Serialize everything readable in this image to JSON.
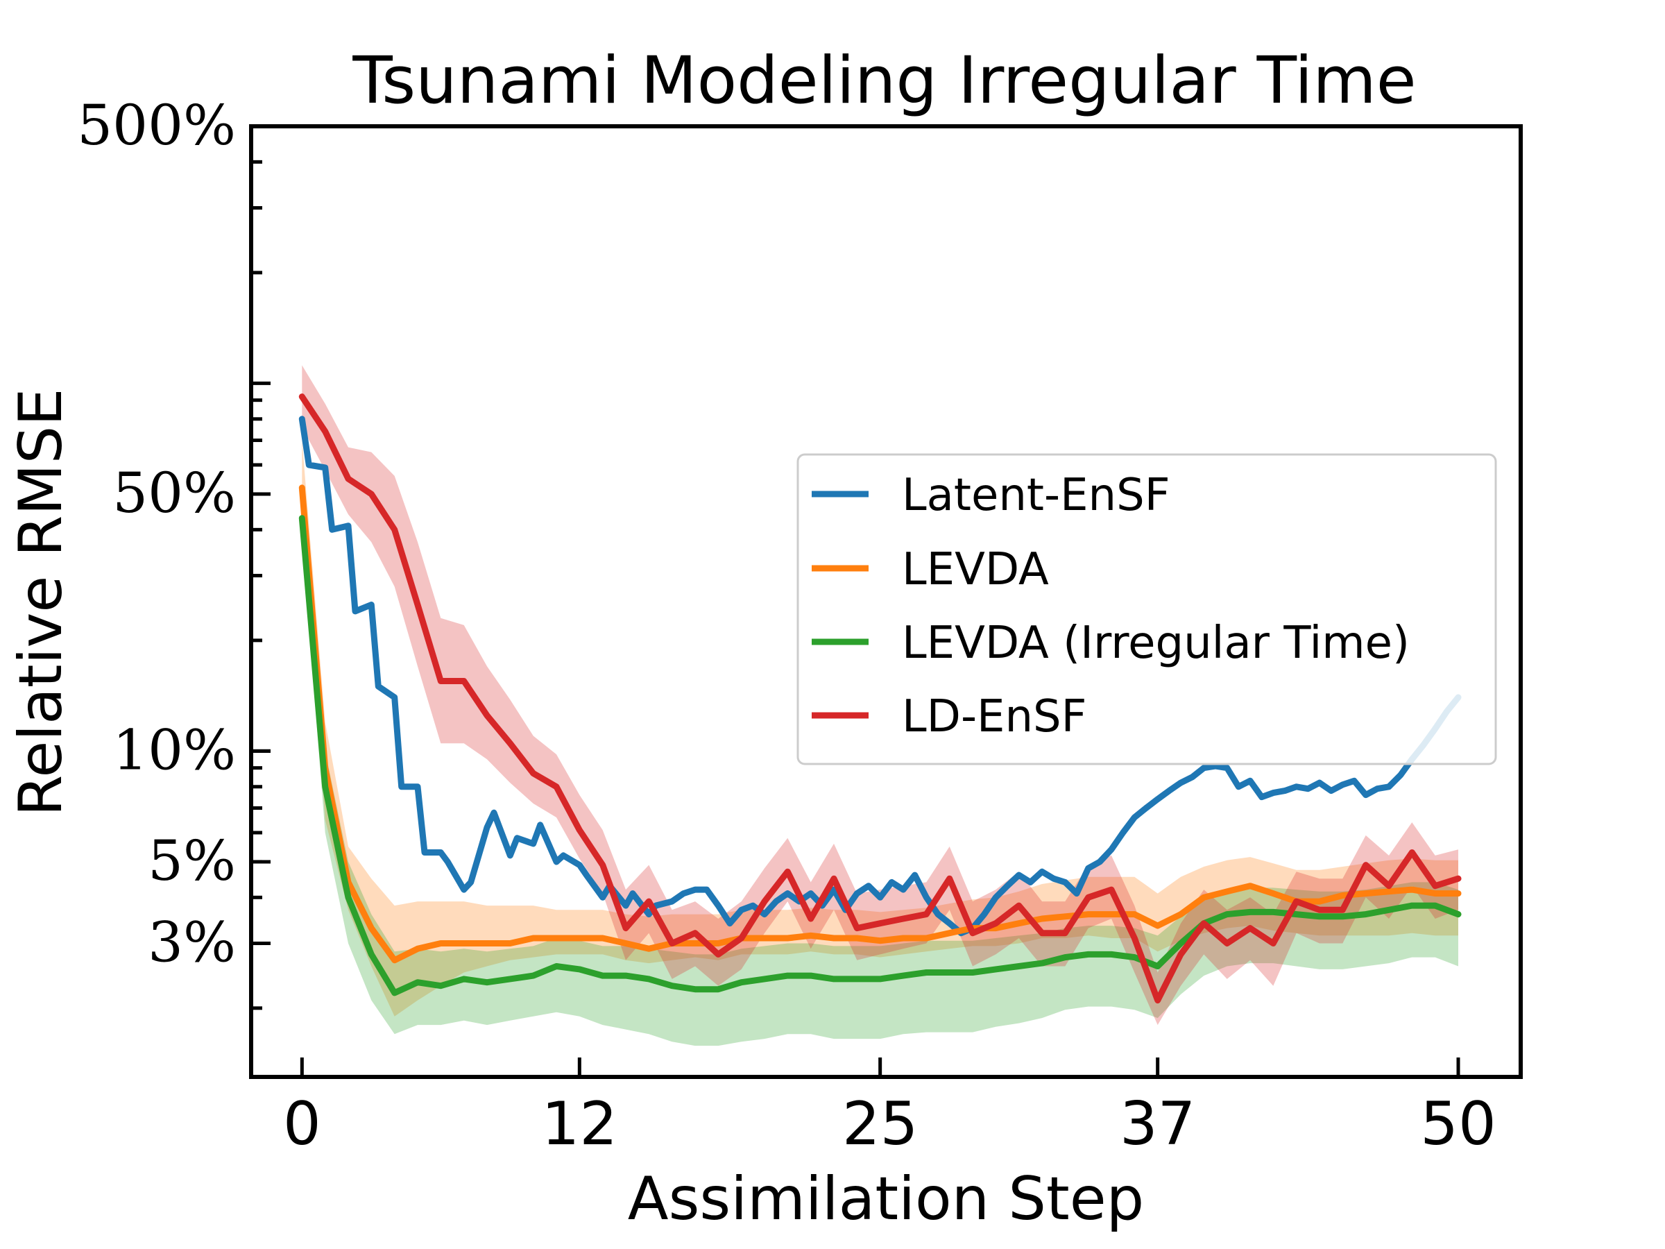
{
  "chart_data": {
    "type": "line",
    "title": "Tsunami Modeling Irregular Time",
    "xlabel": "Assimilation Step",
    "ylabel": "Relative RMSE",
    "xlim": [
      -2.2,
      52.7
    ],
    "ylim_percent": [
      1.3,
      500
    ],
    "yscale": "log",
    "xticks": [
      0,
      12,
      25,
      37,
      50
    ],
    "xtick_labels": [
      "0",
      "12",
      "25",
      "37",
      "50"
    ],
    "yticks_percent": [
      500,
      50,
      10,
      5,
      3
    ],
    "ytick_labels": [
      "500%",
      "50%",
      "10%",
      "5%",
      "3%"
    ],
    "legend_position": "center-right",
    "series": [
      {
        "name": "Latent-EnSF",
        "color": "#1f77b4",
        "x": [
          0,
          0.3,
          1,
          1.3,
          2,
          2.3,
          3,
          3.3,
          4,
          4.3,
          5,
          5.3,
          6,
          6.3,
          7,
          7.3,
          8,
          8.3,
          9,
          9.3,
          10,
          10.3,
          11,
          11.3,
          12,
          12.3,
          13,
          13.3,
          14,
          14.3,
          15,
          15.3,
          16,
          16.5,
          17,
          17.5,
          18,
          18.5,
          19,
          19.5,
          20,
          20.5,
          21,
          21.5,
          22,
          22.5,
          23,
          23.5,
          24,
          24.5,
          25,
          25.5,
          26,
          26.5,
          27,
          27.5,
          28,
          28.5,
          29,
          29.5,
          30,
          30.5,
          31,
          31.5,
          32,
          32.5,
          33,
          33.5,
          34,
          34.5,
          35,
          35.5,
          36,
          36.5,
          37,
          37.5,
          38,
          38.5,
          39,
          39.5,
          40,
          40.5,
          41,
          41.5,
          42,
          42.5,
          43,
          43.5,
          44,
          44.5,
          45,
          45.5,
          46,
          46.5,
          47,
          47.5,
          48,
          48.5,
          49,
          49.5,
          50
        ],
        "values_percent": [
          80,
          60,
          59,
          40,
          41,
          24,
          25,
          15,
          14,
          8.0,
          8.0,
          5.3,
          5.3,
          5.0,
          4.2,
          4.4,
          6.2,
          6.8,
          5.2,
          5.8,
          5.6,
          6.3,
          5.0,
          5.2,
          4.9,
          4.6,
          4.0,
          4.3,
          3.8,
          4.1,
          3.6,
          3.8,
          3.9,
          4.1,
          4.2,
          4.2,
          3.8,
          3.4,
          3.7,
          3.8,
          3.6,
          3.9,
          4.1,
          3.9,
          4.1,
          3.8,
          4.2,
          3.7,
          4.1,
          4.3,
          4.0,
          4.4,
          4.2,
          4.6,
          4.0,
          3.6,
          3.4,
          3.2,
          3.3,
          3.6,
          4.0,
          4.3,
          4.6,
          4.4,
          4.7,
          4.5,
          4.4,
          4.1,
          4.8,
          5.0,
          5.4,
          6.0,
          6.6,
          7.0,
          7.4,
          7.8,
          8.2,
          8.5,
          9.0,
          9.1,
          9.0,
          8.0,
          8.3,
          7.5,
          7.7,
          7.8,
          8.0,
          7.9,
          8.2,
          7.8,
          8.1,
          8.3,
          7.6,
          7.9,
          8.0,
          8.6,
          9.5,
          10.4,
          11.5,
          12.8,
          14.0
        ]
      },
      {
        "name": "LEVDA",
        "color": "#ff7f0e",
        "x": [
          0,
          1,
          2,
          3,
          4,
          5,
          6,
          7,
          8,
          9,
          10,
          11,
          12,
          13,
          14,
          15,
          16,
          17,
          18,
          19,
          20,
          21,
          22,
          23,
          24,
          25,
          26,
          27,
          28,
          29,
          30,
          31,
          32,
          33,
          34,
          35,
          36,
          37,
          38,
          39,
          40,
          41,
          42,
          43,
          44,
          45,
          46,
          47,
          48,
          49,
          50
        ],
        "values_percent": [
          52,
          9.0,
          4.4,
          3.3,
          2.7,
          2.9,
          3.0,
          3.0,
          3.0,
          3.0,
          3.1,
          3.1,
          3.1,
          3.1,
          3.0,
          2.9,
          3.0,
          3.0,
          3.0,
          3.1,
          3.1,
          3.1,
          3.15,
          3.1,
          3.1,
          3.05,
          3.1,
          3.1,
          3.2,
          3.3,
          3.3,
          3.4,
          3.5,
          3.55,
          3.6,
          3.6,
          3.6,
          3.35,
          3.6,
          4.0,
          4.15,
          4.3,
          4.1,
          3.9,
          3.9,
          4.05,
          4.1,
          4.15,
          4.2,
          4.1,
          4.1
        ],
        "band_percent": [
          [
            45,
            70
          ],
          [
            6.5,
            12
          ],
          [
            3.7,
            5.5
          ],
          [
            2.6,
            4.5
          ],
          [
            1.9,
            3.8
          ],
          [
            2.1,
            3.9
          ],
          [
            2.3,
            3.9
          ],
          [
            2.5,
            3.9
          ],
          [
            2.6,
            3.8
          ],
          [
            2.7,
            3.8
          ],
          [
            2.75,
            3.8
          ],
          [
            2.8,
            3.7
          ],
          [
            2.8,
            3.7
          ],
          [
            2.8,
            3.7
          ],
          [
            2.7,
            3.6
          ],
          [
            2.65,
            3.55
          ],
          [
            2.7,
            3.6
          ],
          [
            2.75,
            3.6
          ],
          [
            2.7,
            3.6
          ],
          [
            2.8,
            3.7
          ],
          [
            2.8,
            3.7
          ],
          [
            2.8,
            3.7
          ],
          [
            2.85,
            3.75
          ],
          [
            2.8,
            3.7
          ],
          [
            2.8,
            3.7
          ],
          [
            2.75,
            3.65
          ],
          [
            2.8,
            3.7
          ],
          [
            2.85,
            3.75
          ],
          [
            2.9,
            3.85
          ],
          [
            2.95,
            3.95
          ],
          [
            2.95,
            4.0
          ],
          [
            3.0,
            4.15
          ],
          [
            3.1,
            4.35
          ],
          [
            3.1,
            4.45
          ],
          [
            3.15,
            4.55
          ],
          [
            3.1,
            4.55
          ],
          [
            3.1,
            4.55
          ],
          [
            2.85,
            4.1
          ],
          [
            3.05,
            4.55
          ],
          [
            3.2,
            4.85
          ],
          [
            3.3,
            5.05
          ],
          [
            3.35,
            5.15
          ],
          [
            3.25,
            4.95
          ],
          [
            3.2,
            4.75
          ],
          [
            3.15,
            4.75
          ],
          [
            3.15,
            4.85
          ],
          [
            3.15,
            4.95
          ],
          [
            3.15,
            5.05
          ],
          [
            3.2,
            5.1
          ],
          [
            3.15,
            5.05
          ],
          [
            3.15,
            5.05
          ]
        ]
      },
      {
        "name": "LEVDA (Irregular Time)",
        "color": "#2ca02c",
        "x": [
          0,
          1,
          2,
          3,
          4,
          5,
          6,
          7,
          8,
          9,
          10,
          11,
          12,
          13,
          14,
          15,
          16,
          17,
          18,
          19,
          20,
          21,
          22,
          23,
          24,
          25,
          26,
          27,
          28,
          29,
          30,
          31,
          32,
          33,
          34,
          35,
          36,
          37,
          38,
          39,
          40,
          41,
          42,
          43,
          44,
          45,
          46,
          47,
          48,
          49,
          50
        ],
        "values_percent": [
          43,
          8.0,
          4.0,
          2.8,
          2.2,
          2.35,
          2.3,
          2.4,
          2.35,
          2.4,
          2.45,
          2.6,
          2.55,
          2.45,
          2.45,
          2.4,
          2.3,
          2.25,
          2.25,
          2.35,
          2.4,
          2.45,
          2.45,
          2.4,
          2.4,
          2.4,
          2.45,
          2.5,
          2.5,
          2.5,
          2.55,
          2.6,
          2.65,
          2.75,
          2.8,
          2.8,
          2.75,
          2.6,
          3.0,
          3.4,
          3.6,
          3.65,
          3.65,
          3.6,
          3.55,
          3.55,
          3.6,
          3.7,
          3.8,
          3.8,
          3.6
        ],
        "band_percent": [
          [
            38,
            52
          ],
          [
            6.0,
            10
          ],
          [
            3.0,
            5.0
          ],
          [
            2.1,
            3.6
          ],
          [
            1.7,
            2.85
          ],
          [
            1.8,
            2.9
          ],
          [
            1.8,
            2.85
          ],
          [
            1.85,
            2.9
          ],
          [
            1.8,
            2.85
          ],
          [
            1.85,
            2.9
          ],
          [
            1.9,
            2.95
          ],
          [
            1.95,
            3.1
          ],
          [
            1.9,
            3.05
          ],
          [
            1.8,
            2.95
          ],
          [
            1.75,
            2.95
          ],
          [
            1.7,
            2.9
          ],
          [
            1.62,
            2.85
          ],
          [
            1.58,
            2.8
          ],
          [
            1.58,
            2.8
          ],
          [
            1.62,
            2.9
          ],
          [
            1.65,
            2.95
          ],
          [
            1.7,
            3.0
          ],
          [
            1.7,
            3.0
          ],
          [
            1.65,
            2.95
          ],
          [
            1.65,
            2.95
          ],
          [
            1.65,
            2.95
          ],
          [
            1.7,
            3.0
          ],
          [
            1.72,
            3.05
          ],
          [
            1.72,
            3.05
          ],
          [
            1.72,
            3.05
          ],
          [
            1.78,
            3.1
          ],
          [
            1.82,
            3.15
          ],
          [
            1.88,
            3.2
          ],
          [
            1.98,
            3.3
          ],
          [
            2.02,
            3.35
          ],
          [
            2.02,
            3.35
          ],
          [
            1.98,
            3.3
          ],
          [
            1.88,
            3.15
          ],
          [
            2.18,
            3.55
          ],
          [
            2.45,
            4.0
          ],
          [
            2.6,
            4.2
          ],
          [
            2.65,
            4.25
          ],
          [
            2.65,
            4.25
          ],
          [
            2.6,
            4.2
          ],
          [
            2.55,
            4.15
          ],
          [
            2.55,
            4.15
          ],
          [
            2.6,
            4.2
          ],
          [
            2.65,
            4.3
          ],
          [
            2.75,
            4.4
          ],
          [
            2.75,
            4.4
          ],
          [
            2.6,
            4.2
          ]
        ]
      },
      {
        "name": "LD-EnSF",
        "color": "#d62728",
        "x": [
          0,
          1,
          2,
          3,
          4,
          5,
          6,
          7,
          8,
          9,
          10,
          11,
          12,
          13,
          14,
          15,
          16,
          17,
          18,
          19,
          20,
          21,
          22,
          23,
          24,
          25,
          26,
          27,
          28,
          29,
          30,
          31,
          32,
          33,
          34,
          35,
          36,
          37,
          38,
          39,
          40,
          41,
          42,
          43,
          44,
          45,
          46,
          47,
          48,
          49,
          50
        ],
        "values_percent": [
          92,
          74,
          55,
          50,
          40,
          25,
          15.5,
          15.5,
          12.5,
          10.5,
          8.7,
          8.0,
          6.1,
          4.9,
          3.3,
          3.9,
          3.0,
          3.2,
          2.8,
          3.1,
          3.9,
          4.7,
          3.5,
          4.5,
          3.3,
          3.4,
          3.5,
          3.6,
          4.5,
          3.2,
          3.4,
          3.8,
          3.2,
          3.2,
          4.0,
          4.2,
          3.1,
          2.1,
          2.8,
          3.4,
          3.0,
          3.3,
          3.0,
          3.9,
          3.7,
          3.7,
          4.9,
          4.3,
          5.3,
          4.3,
          4.5
        ],
        "band_percent": [
          [
            76,
            112
          ],
          [
            58,
            88
          ],
          [
            44,
            67
          ],
          [
            37,
            65
          ],
          [
            28,
            56
          ],
          [
            17,
            37
          ],
          [
            10.5,
            23
          ],
          [
            10.5,
            22
          ],
          [
            9.5,
            17
          ],
          [
            8.2,
            13.8
          ],
          [
            7.2,
            11
          ],
          [
            6.6,
            9.8
          ],
          [
            5.1,
            7.6
          ],
          [
            4.1,
            6.1
          ],
          [
            2.7,
            4.2
          ],
          [
            3.2,
            4.9
          ],
          [
            2.4,
            3.7
          ],
          [
            2.6,
            3.9
          ],
          [
            2.3,
            3.5
          ],
          [
            2.55,
            3.9
          ],
          [
            3.2,
            4.8
          ],
          [
            3.9,
            5.8
          ],
          [
            2.9,
            4.4
          ],
          [
            3.7,
            5.6
          ],
          [
            2.7,
            4.1
          ],
          [
            2.8,
            4.2
          ],
          [
            2.9,
            4.3
          ],
          [
            3.0,
            4.4
          ],
          [
            3.7,
            5.5
          ],
          [
            2.6,
            3.9
          ],
          [
            2.8,
            4.2
          ],
          [
            3.1,
            4.7
          ],
          [
            2.6,
            3.9
          ],
          [
            2.6,
            3.9
          ],
          [
            3.3,
            4.9
          ],
          [
            3.5,
            5.2
          ],
          [
            2.5,
            3.8
          ],
          [
            1.8,
            2.5
          ],
          [
            2.3,
            3.4
          ],
          [
            2.8,
            4.2
          ],
          [
            2.4,
            3.7
          ],
          [
            2.7,
            4.0
          ],
          [
            2.3,
            3.6
          ],
          [
            3.2,
            4.7
          ],
          [
            3.0,
            4.5
          ],
          [
            3.0,
            4.5
          ],
          [
            4.0,
            5.9
          ],
          [
            3.5,
            5.2
          ],
          [
            4.3,
            6.4
          ],
          [
            3.5,
            5.2
          ],
          [
            3.7,
            5.4
          ]
        ]
      }
    ]
  }
}
